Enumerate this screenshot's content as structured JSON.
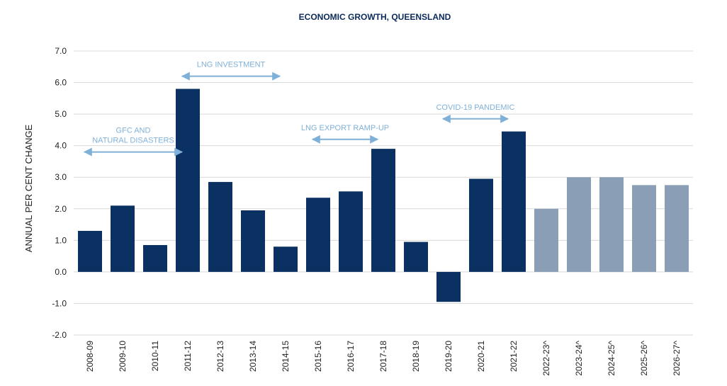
{
  "chart_data": {
    "type": "bar",
    "title": "ECONOMIC GROWTH, QUEENSLAND",
    "xlabel": "",
    "ylabel": "ANNUAL PER CENT CHANGE",
    "ylim": [
      -2.0,
      7.0
    ],
    "yticks": [
      "-2.0",
      "-1.0",
      "0.0",
      "1.0",
      "2.0",
      "3.0",
      "4.0",
      "5.0",
      "6.0",
      "7.0"
    ],
    "grid": true,
    "categories": [
      "2008-09",
      "2009-10",
      "2010-11",
      "2011-12",
      "2012-13",
      "2013-14",
      "2014-15",
      "2015-16",
      "2016-17",
      "2017-18",
      "2018-19",
      "2019-20",
      "2020-21",
      "2021-22",
      "2022-23^",
      "2023-24^",
      "2024-25^",
      "2025-26^",
      "2026-27^"
    ],
    "values": [
      1.3,
      2.1,
      0.85,
      5.8,
      2.85,
      1.95,
      0.8,
      2.35,
      2.55,
      3.9,
      0.95,
      -0.95,
      2.95,
      4.45,
      2.0,
      3.0,
      3.0,
      2.75,
      2.75
    ],
    "bar_kind": [
      "actual",
      "actual",
      "actual",
      "actual",
      "actual",
      "actual",
      "actual",
      "actual",
      "actual",
      "actual",
      "actual",
      "actual",
      "actual",
      "actual",
      "forecast",
      "forecast",
      "forecast",
      "forecast",
      "forecast"
    ],
    "colors": {
      "actual": "#0b3163",
      "forecast": "#8a9fb6",
      "annotation": "#7fb0d8",
      "grid": "#d9d9d9"
    },
    "annotations": [
      {
        "lines": [
          "GFC AND",
          "NATURAL DISASTERS"
        ],
        "from": "2008-09",
        "to": "2011-12",
        "y": 3.8
      },
      {
        "lines": [
          "LNG INVESTMENT"
        ],
        "from": "2011-12",
        "to": "2014-15",
        "y": 6.2
      },
      {
        "lines": [
          "LNG EXPORT RAMP-UP"
        ],
        "from": "2015-16",
        "to": "2017-18",
        "y": 4.2
      },
      {
        "lines": [
          "COVID-19 PANDEMIC"
        ],
        "from": "2019-20",
        "to": "2021-22",
        "y": 4.85
      }
    ]
  }
}
